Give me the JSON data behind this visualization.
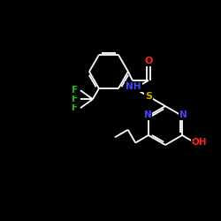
{
  "background_color": "#000000",
  "bond_color": "#ffffff",
  "atom_colors": {
    "N": "#4444ff",
    "O": "#ff2222",
    "S": "#ccaa00",
    "F": "#22bb22",
    "C": "#ffffff"
  },
  "figsize": [
    2.5,
    2.5
  ],
  "dpi": 100
}
